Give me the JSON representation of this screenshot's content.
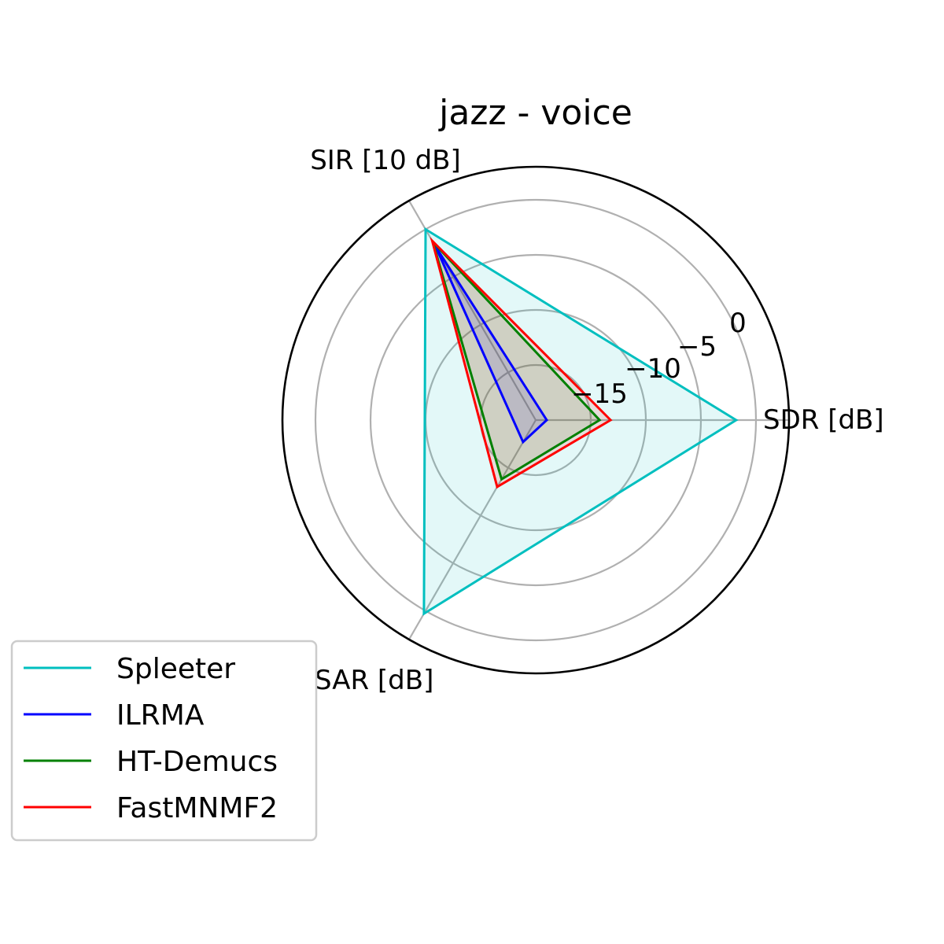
{
  "chart_data": {
    "type": "radar",
    "title": "jazz - voice",
    "axes": [
      "SDR [dB]",
      "SIR [10 dB]",
      "SAR [dB]"
    ],
    "rlim": [
      -20,
      3
    ],
    "rticks": [
      -15,
      -10,
      -5,
      0
    ],
    "rtick_labels": [
      "−15",
      "−10",
      "−5",
      "0"
    ],
    "grid": true,
    "legend_position": "lower-left",
    "series": [
      {
        "name": "Spleeter",
        "color": "#00bfbf",
        "values": [
          -1.8,
          0.0,
          0.3
        ],
        "filled": true
      },
      {
        "name": "ILRMA",
        "color": "#0000ff",
        "values": [
          -19.0,
          -1.8,
          -17.7
        ],
        "filled": true
      },
      {
        "name": "HT-Demucs",
        "color": "#008000",
        "values": [
          -14.2,
          -1.3,
          -13.8
        ],
        "filled": true
      },
      {
        "name": "FastMNMF2",
        "color": "#ff0000",
        "values": [
          -13.2,
          -1.2,
          -13.0
        ],
        "filled": true
      }
    ]
  }
}
